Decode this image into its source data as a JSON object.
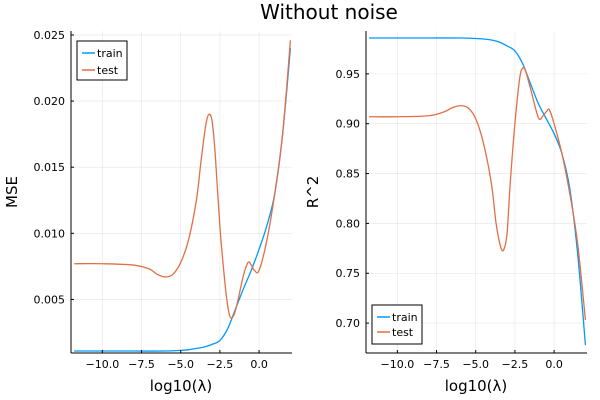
{
  "figure": {
    "title": "Without noise"
  },
  "colors": {
    "train": "#009af9",
    "test": "#e26f46"
  },
  "chart_data": [
    {
      "type": "line",
      "id": "mse",
      "xlabel": "log10(λ)",
      "ylabel": "MSE",
      "xlim": [
        -12,
        2.1
      ],
      "ylim": [
        0.00095,
        0.0253
      ],
      "xticks": [
        -10,
        -7.5,
        -5,
        -2.5,
        0
      ],
      "xtick_labels": [
        "−10.0",
        "−7.5",
        "−5.0",
        "−2.5",
        "0.0"
      ],
      "yticks": [
        0.005,
        0.01,
        0.015,
        0.02,
        0.025
      ],
      "ytick_labels": [
        "0.005",
        "0.010",
        "0.015",
        "0.020",
        "0.025"
      ],
      "grid": true,
      "legend": "top-left",
      "series": [
        {
          "name": "train",
          "color_key": "train",
          "x": [
            -11.8,
            -10,
            -8,
            -6,
            -5,
            -4.5,
            -4,
            -3.5,
            -3,
            -2.5,
            -2,
            -1.5,
            -1,
            -0.5,
            0,
            0.5,
            1,
            1.5,
            2
          ],
          "y": [
            0.0011,
            0.0011,
            0.0011,
            0.0011,
            0.00115,
            0.0012,
            0.0013,
            0.0014,
            0.0016,
            0.0019,
            0.0028,
            0.0043,
            0.0058,
            0.0072,
            0.0088,
            0.0106,
            0.013,
            0.0175,
            0.024
          ]
        },
        {
          "name": "test",
          "color_key": "test",
          "x": [
            -11.8,
            -10,
            -8,
            -7,
            -6.5,
            -6,
            -5.5,
            -5,
            -4.5,
            -4,
            -3.7,
            -3.4,
            -3.2,
            -3,
            -2.8,
            -2.5,
            -2.2,
            -2,
            -1.8,
            -1.5,
            -1,
            -0.7,
            -0.5,
            -0.3,
            0,
            0.5,
            1,
            1.5,
            2
          ],
          "y": [
            0.0077,
            0.0077,
            0.0076,
            0.0073,
            0.0069,
            0.0067,
            0.0069,
            0.0078,
            0.0095,
            0.0125,
            0.0155,
            0.0182,
            0.019,
            0.0185,
            0.016,
            0.0105,
            0.0065,
            0.0045,
            0.0036,
            0.0042,
            0.0068,
            0.0078,
            0.0076,
            0.0072,
            0.0072,
            0.0095,
            0.013,
            0.0175,
            0.0246
          ]
        }
      ]
    },
    {
      "type": "line",
      "id": "r2",
      "xlabel": "log10(λ)",
      "ylabel": "R^2",
      "xlim": [
        -12,
        2.1
      ],
      "ylim": [
        0.67,
        0.993
      ],
      "xticks": [
        -10,
        -7.5,
        -5,
        -2.5,
        0
      ],
      "xtick_labels": [
        "−10.0",
        "−7.5",
        "−5.0",
        "−2.5",
        "0.0"
      ],
      "yticks": [
        0.7,
        0.75,
        0.8,
        0.85,
        0.9,
        0.95
      ],
      "ytick_labels": [
        "0.70",
        "0.75",
        "0.80",
        "0.85",
        "0.90",
        "0.95"
      ],
      "grid": true,
      "legend": "bottom-left",
      "series": [
        {
          "name": "train",
          "color_key": "train",
          "x": [
            -11.8,
            -10,
            -8,
            -6,
            -5,
            -4.5,
            -4,
            -3.5,
            -3,
            -2.5,
            -2,
            -1.5,
            -1,
            -0.5,
            0,
            0.5,
            1,
            1.5,
            2
          ],
          "y": [
            0.986,
            0.986,
            0.986,
            0.986,
            0.9855,
            0.985,
            0.984,
            0.982,
            0.978,
            0.973,
            0.96,
            0.94,
            0.92,
            0.905,
            0.89,
            0.87,
            0.835,
            0.77,
            0.678
          ]
        },
        {
          "name": "test",
          "color_key": "test",
          "x": [
            -11.8,
            -10,
            -8,
            -7,
            -6.5,
            -6,
            -5.5,
            -5,
            -4.5,
            -4,
            -3.7,
            -3.4,
            -3.2,
            -3,
            -2.8,
            -2.5,
            -2.2,
            -2,
            -1.8,
            -1.5,
            -1,
            -0.7,
            -0.5,
            -0.3,
            0,
            0.5,
            1,
            1.5,
            2
          ],
          "y": [
            0.907,
            0.907,
            0.908,
            0.912,
            0.916,
            0.918,
            0.916,
            0.905,
            0.88,
            0.84,
            0.8,
            0.776,
            0.774,
            0.79,
            0.84,
            0.9,
            0.945,
            0.956,
            0.952,
            0.935,
            0.906,
            0.908,
            0.912,
            0.914,
            0.9,
            0.87,
            0.83,
            0.78,
            0.703
          ]
        }
      ]
    }
  ]
}
